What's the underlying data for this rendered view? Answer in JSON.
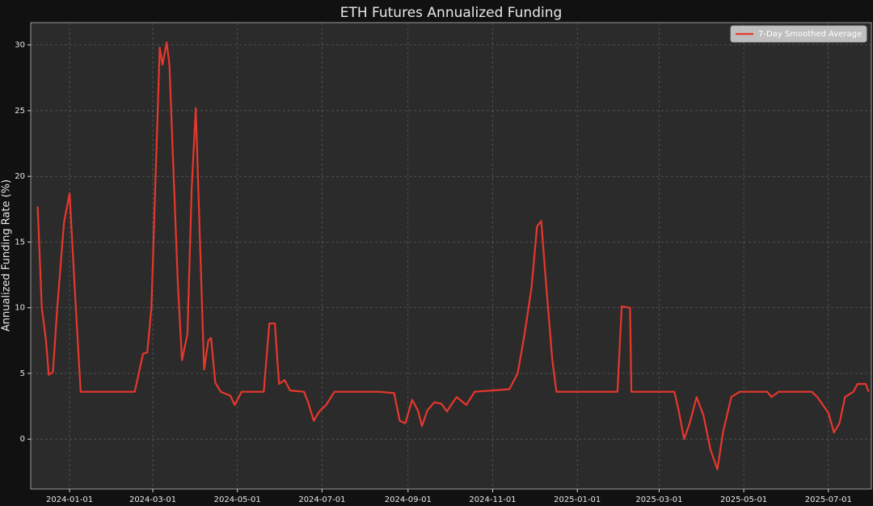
{
  "chart_data": {
    "type": "line",
    "title": "ETH Futures Annualized Funding",
    "y_label": "Annualized Funding Rate (%)",
    "legend": "upper right",
    "grid": true,
    "xlim": [
      "2023-12-04",
      "2025-08-01"
    ],
    "xticks": [
      "2024-01-01",
      "2024-03-01",
      "2024-05-01",
      "2024-07-01",
      "2024-09-01",
      "2024-11-01",
      "2025-01-01",
      "2025-03-01",
      "2025-05-01",
      "2025-07-01"
    ],
    "ylim": [
      -3.8,
      31.7
    ],
    "yticks": [
      0,
      5,
      10,
      15,
      20,
      25,
      30
    ],
    "x": [
      "2023-12-09",
      "2023-12-12",
      "2023-12-15",
      "2023-12-17",
      "2023-12-20",
      "2023-12-23",
      "2023-12-28",
      "2024-01-01",
      "2024-01-05",
      "2024-01-09",
      "2024-02-17",
      "2024-02-23",
      "2024-02-26",
      "2024-02-29",
      "2024-03-03",
      "2024-03-06",
      "2024-03-08",
      "2024-03-11",
      "2024-03-13",
      "2024-03-15",
      "2024-03-19",
      "2024-03-22",
      "2024-03-26",
      "2024-03-29",
      "2024-04-01",
      "2024-04-04",
      "2024-04-07",
      "2024-04-10",
      "2024-04-12",
      "2024-04-15",
      "2024-04-19",
      "2024-04-26",
      "2024-04-29",
      "2024-05-04",
      "2024-05-20",
      "2024-05-24",
      "2024-05-28",
      "2024-05-31",
      "2024-06-04",
      "2024-06-08",
      "2024-06-18",
      "2024-06-21",
      "2024-06-25",
      "2024-06-29",
      "2024-07-04",
      "2024-07-10",
      "2024-08-03",
      "2024-08-11",
      "2024-08-22",
      "2024-08-26",
      "2024-08-30",
      "2024-09-04",
      "2024-09-08",
      "2024-09-11",
      "2024-09-15",
      "2024-09-20",
      "2024-09-25",
      "2024-09-29",
      "2024-10-02",
      "2024-10-06",
      "2024-10-13",
      "2024-10-19",
      "2024-11-13",
      "2024-11-19",
      "2024-11-24",
      "2024-11-29",
      "2024-12-03",
      "2024-12-06",
      "2024-12-09",
      "2024-12-14",
      "2024-12-17",
      "2025-01-30",
      "2025-02-02",
      "2025-02-08",
      "2025-02-09",
      "2025-03-12",
      "2025-03-15",
      "2025-03-19",
      "2025-03-23",
      "2025-03-28",
      "2025-04-02",
      "2025-04-07",
      "2025-04-12",
      "2025-04-16",
      "2025-04-22",
      "2025-04-28",
      "2025-05-18",
      "2025-05-21",
      "2025-05-26",
      "2025-06-19",
      "2025-06-23",
      "2025-07-01",
      "2025-07-05",
      "2025-07-09",
      "2025-07-13",
      "2025-07-19",
      "2025-07-22",
      "2025-07-28",
      "2025-07-30"
    ],
    "series": [
      {
        "name": "7-Day Smoothed Average",
        "color": "#e8372c",
        "values": [
          17.7,
          10,
          7.5,
          4.9,
          5.1,
          9.8,
          16.5,
          18.7,
          11,
          3.6,
          3.6,
          6.5,
          6.6,
          10,
          20,
          29.8,
          28.5,
          30.2,
          28.5,
          23,
          12,
          6,
          8,
          19,
          25.2,
          15,
          5.3,
          7.5,
          7.7,
          4.3,
          3.6,
          3.3,
          2.6,
          3.6,
          3.6,
          8.8,
          8.8,
          4.2,
          4.5,
          3.7,
          3.6,
          2.8,
          1.4,
          2.1,
          2.6,
          3.6,
          3.6,
          3.6,
          3.5,
          1.4,
          1.2,
          3.0,
          2.2,
          1.0,
          2.2,
          2.8,
          2.7,
          2.1,
          2.6,
          3.2,
          2.6,
          3.6,
          3.8,
          5.0,
          8,
          11.5,
          16.2,
          16.6,
          12.5,
          6,
          3.6,
          3.6,
          10.1,
          10.0,
          3.6,
          3.6,
          2.2,
          0,
          1.2,
          3.2,
          1.8,
          -0.8,
          -2.3,
          0.5,
          3.2,
          3.6,
          3.6,
          3.2,
          3.6,
          3.6,
          3.2,
          2.0,
          0.5,
          1.2,
          3.2,
          3.6,
          4.2,
          4.2,
          3.6
        ]
      }
    ]
  }
}
